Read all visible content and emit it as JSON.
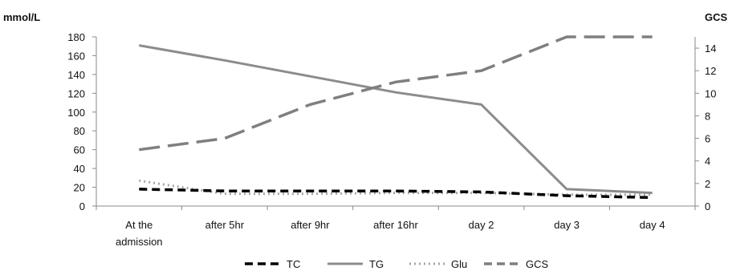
{
  "chart_data": {
    "type": "line",
    "categories": [
      "At the admission",
      "after 5hr",
      "after 9hr",
      "after 16hr",
      "day 2",
      "day 3",
      "day 4"
    ],
    "category_labels": [
      [
        "At the",
        "admission"
      ],
      [
        "after 5hr"
      ],
      [
        "after 9hr"
      ],
      [
        "after 16hr"
      ],
      [
        "day 2"
      ],
      [
        "day 3"
      ],
      [
        "day 4"
      ]
    ],
    "ylabel_left": "mmol/L",
    "ylabel_right": "GCS",
    "ylim_left": [
      0,
      180
    ],
    "ylim_right": [
      0,
      15
    ],
    "yticks_left": [
      0,
      20,
      40,
      60,
      80,
      100,
      120,
      140,
      160,
      180
    ],
    "yticks_right": [
      0,
      2,
      4,
      6,
      8,
      10,
      12,
      14
    ],
    "grid": false,
    "legend_position": "bottom",
    "series": [
      {
        "name": "TC",
        "axis": "left",
        "values": [
          18,
          16,
          16,
          16,
          15,
          11,
          9
        ],
        "color": "#000000",
        "dash": "10,6",
        "width": 3.5
      },
      {
        "name": "TG",
        "axis": "left",
        "values": [
          171,
          155,
          138,
          121,
          108,
          18,
          14
        ],
        "color": "#8c8c8c",
        "dash": "",
        "width": 3
      },
      {
        "name": "Glu",
        "axis": "left",
        "values": [
          27,
          13,
          13,
          14,
          14,
          12,
          12
        ],
        "color": "#a6a6a6",
        "dash": "2,4",
        "width": 3
      },
      {
        "name": "GCS",
        "axis": "right",
        "values": [
          5,
          6,
          9,
          11,
          12,
          15,
          15
        ],
        "color": "#7f7f7f",
        "dash": "26,10",
        "width": 3.5
      }
    ]
  }
}
